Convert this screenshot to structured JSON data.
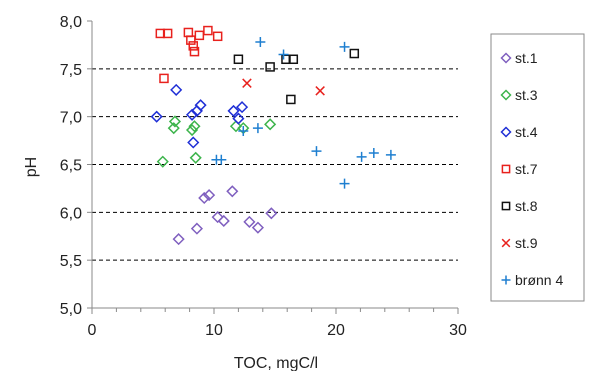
{
  "chart_data": {
    "type": "scatter",
    "title": "",
    "xlabel": "TOC, mgC/l",
    "ylabel": "pH",
    "xlim": [
      0,
      30
    ],
    "ylim": [
      5.0,
      8.0
    ],
    "x_ticks": [
      0,
      10,
      20,
      30
    ],
    "x_tick_labels": [
      "0",
      "10",
      "20",
      "30"
    ],
    "y_ticks": [
      5.0,
      5.5,
      6.0,
      6.5,
      7.0,
      7.5,
      8.0
    ],
    "y_tick_labels": [
      "5,0",
      "5,5",
      "6,0",
      "6,5",
      "7,0",
      "7,5",
      "8,0"
    ],
    "grid": "horizontal dashed",
    "legend_position": "right",
    "series": [
      {
        "name": "st.1",
        "marker": "diamond",
        "color": "#7f5fbf",
        "points": [
          [
            7.1,
            5.72
          ],
          [
            8.6,
            5.83
          ],
          [
            9.2,
            6.15
          ],
          [
            9.6,
            6.18
          ],
          [
            10.3,
            5.95
          ],
          [
            10.8,
            5.91
          ],
          [
            11.5,
            6.22
          ],
          [
            12.9,
            5.9
          ],
          [
            13.6,
            5.84
          ],
          [
            14.7,
            5.99
          ]
        ]
      },
      {
        "name": "st.3",
        "marker": "diamond",
        "color": "#3cb44b",
        "points": [
          [
            5.8,
            6.53
          ],
          [
            6.7,
            6.88
          ],
          [
            6.8,
            6.95
          ],
          [
            8.2,
            6.86
          ],
          [
            8.4,
            6.9
          ],
          [
            8.5,
            6.57
          ],
          [
            11.8,
            6.9
          ],
          [
            12.4,
            6.88
          ],
          [
            14.6,
            6.92
          ]
        ]
      },
      {
        "name": "st.4",
        "marker": "diamond",
        "color": "#1f2fd6",
        "points": [
          [
            5.3,
            7.0
          ],
          [
            6.9,
            7.28
          ],
          [
            8.2,
            7.02
          ],
          [
            8.3,
            6.73
          ],
          [
            8.6,
            7.06
          ],
          [
            8.9,
            7.12
          ],
          [
            11.6,
            7.06
          ],
          [
            12.3,
            7.1
          ],
          [
            12.0,
            6.98
          ]
        ]
      },
      {
        "name": "st.7",
        "marker": "square",
        "color": "#e8211d",
        "points": [
          [
            5.6,
            7.87
          ],
          [
            6.2,
            7.87
          ],
          [
            5.9,
            7.4
          ],
          [
            7.9,
            7.88
          ],
          [
            8.1,
            7.8
          ],
          [
            8.3,
            7.74
          ],
          [
            8.4,
            7.68
          ],
          [
            8.8,
            7.85
          ],
          [
            9.5,
            7.9
          ],
          [
            10.3,
            7.84
          ]
        ]
      },
      {
        "name": "st.8",
        "marker": "square",
        "color": "#111111",
        "points": [
          [
            12.0,
            7.6
          ],
          [
            14.6,
            7.52
          ],
          [
            15.9,
            7.6
          ],
          [
            16.5,
            7.6
          ],
          [
            16.3,
            7.18
          ],
          [
            21.5,
            7.66
          ]
        ]
      },
      {
        "name": "st.9",
        "marker": "x",
        "color": "#e8211d",
        "points": [
          [
            12.7,
            7.35
          ],
          [
            18.7,
            7.27
          ]
        ]
      },
      {
        "name": "brønn 4",
        "marker": "plus",
        "color": "#1e7fd0",
        "points": [
          [
            13.8,
            7.78
          ],
          [
            15.7,
            7.65
          ],
          [
            20.7,
            7.73
          ],
          [
            10.2,
            6.55
          ],
          [
            10.6,
            6.55
          ],
          [
            12.4,
            6.85
          ],
          [
            13.6,
            6.88
          ],
          [
            18.4,
            6.64
          ],
          [
            20.7,
            6.3
          ],
          [
            22.1,
            6.58
          ],
          [
            23.1,
            6.62
          ],
          [
            24.5,
            6.6
          ]
        ]
      }
    ]
  }
}
